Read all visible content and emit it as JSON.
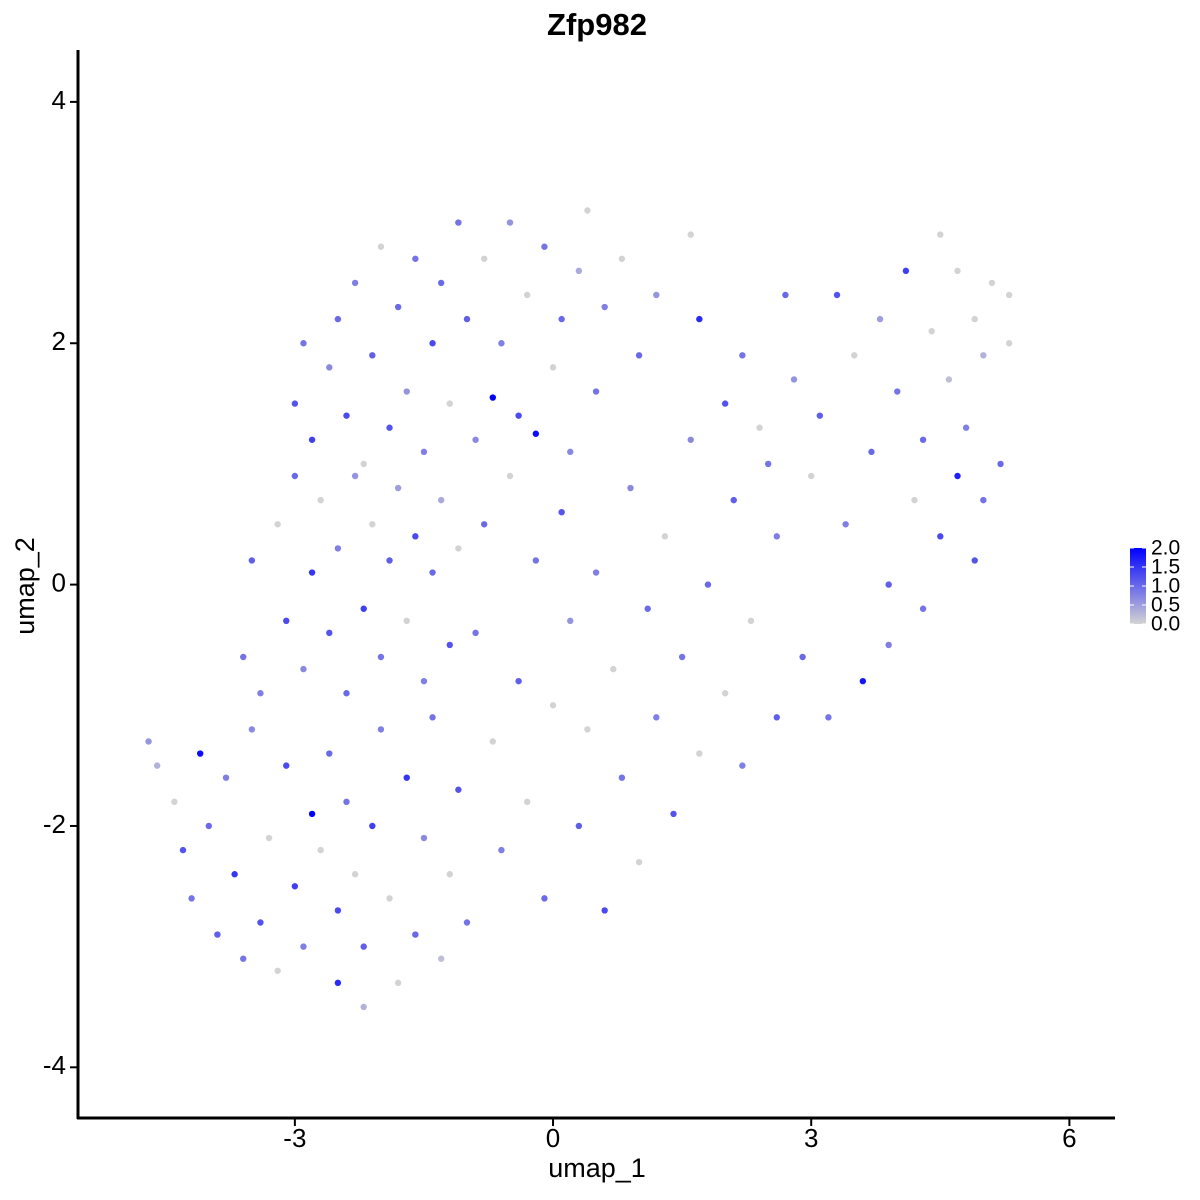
{
  "chart_data": {
    "type": "scatter",
    "title": "Zfp982",
    "x_label": "umap_1",
    "y_label": "umap_2",
    "xlim": [
      -5.52,
      6.53
    ],
    "ylim": [
      -4.42,
      4.43
    ],
    "xticks": [
      -3,
      0,
      3,
      6
    ],
    "yticks": [
      -4,
      -2,
      0,
      2,
      4
    ],
    "color_scale": {
      "low": "#d3d3d3",
      "high": "#0000ff",
      "limits": [
        0,
        2
      ],
      "ticks": [
        {
          "value": 0,
          "label": "0.0"
        },
        {
          "value": 0.5,
          "label": "0.5"
        },
        {
          "value": 1,
          "label": "1.0"
        },
        {
          "value": 1.5,
          "label": "1.5"
        },
        {
          "value": 2,
          "label": "2.0"
        }
      ]
    },
    "x": [
      -4.7,
      -4.6,
      -4.4,
      -4.3,
      -4.2,
      -4.0,
      -3.9,
      -3.8,
      -3.7,
      -3.6,
      -3.5,
      -3.4,
      -3.3,
      -3.2,
      -3.1,
      -3.0,
      -2.9,
      -2.7,
      -2.6,
      -2.5,
      -2.5,
      -2.4,
      -2.3,
      -2.2,
      -2.2,
      -2.1,
      -2.0,
      -1.9,
      -1.8,
      -1.7,
      -1.6,
      -1.5,
      -1.4,
      -1.3,
      -1.2,
      -1.1,
      -1.0,
      -4.1,
      -2.8,
      -3.6,
      -3.5,
      -3.4,
      -3.2,
      -3.1,
      -3.0,
      -2.9,
      -2.8,
      -2.7,
      -2.6,
      -2.5,
      -2.4,
      -2.3,
      -2.2,
      -2.1,
      -2.0,
      -1.9,
      -1.8,
      -1.7,
      -1.6,
      -1.5,
      -1.4,
      -1.3,
      -1.2,
      -1.1,
      -3.0,
      -2.9,
      -2.8,
      -2.6,
      -2.5,
      -2.4,
      -2.3,
      -2.2,
      -2.1,
      -2.0,
      -1.9,
      -1.8,
      -1.7,
      -1.6,
      -1.5,
      -1.4,
      -1.3,
      -1.2,
      -1.1,
      -1.0,
      -0.9,
      -0.8,
      -0.7,
      -0.6,
      -0.5,
      -0.4,
      -0.3,
      -0.2,
      -0.1,
      0.0,
      0.1,
      0.2,
      0.3,
      0.4,
      0.5,
      0.6,
      0.8,
      1.0,
      1.2,
      1.6,
      1.7,
      -0.9,
      -0.8,
      -0.7,
      -0.6,
      -0.5,
      -0.4,
      -0.3,
      -0.2,
      -0.1,
      0.0,
      0.1,
      0.2,
      0.3,
      0.4,
      0.5,
      0.6,
      0.7,
      0.8,
      0.9,
      1.0,
      1.1,
      1.2,
      1.3,
      1.4,
      1.5,
      1.6,
      1.7,
      1.8,
      2.0,
      2.1,
      2.2,
      2.3,
      2.5,
      2.6,
      2.0,
      2.2,
      2.4,
      2.6,
      2.7,
      2.8,
      2.9,
      3.0,
      3.1,
      3.2,
      3.3,
      3.4,
      3.5,
      3.6,
      3.7,
      3.8,
      3.9,
      4.0,
      4.1,
      4.2,
      4.3,
      4.4,
      4.5,
      4.5,
      4.6,
      4.7,
      4.7,
      4.8,
      4.9,
      5.0,
      5.0,
      5.1,
      5.2,
      5.3,
      5.3,
      4.9,
      4.3,
      3.9
    ],
    "values": [
      -1.3,
      -1.5,
      -1.8,
      -2.2,
      -2.6,
      -2.0,
      -2.9,
      -1.6,
      -2.4,
      -3.1,
      -1.2,
      -2.8,
      -2.1,
      -3.2,
      -1.5,
      -2.5,
      -3.0,
      -2.2,
      -1.4,
      -2.7,
      -3.3,
      -1.8,
      -2.4,
      -3.0,
      -3.5,
      -2.0,
      -1.2,
      -2.6,
      -3.3,
      -1.6,
      -2.9,
      -2.1,
      -1.1,
      -3.1,
      -2.4,
      -1.7,
      -2.8,
      -1.4,
      -1.9,
      -0.6,
      0.2,
      -0.9,
      0.5,
      -0.3,
      0.9,
      -0.7,
      0.1,
      0.7,
      -0.4,
      0.3,
      -0.9,
      0.9,
      -0.2,
      0.5,
      -0.6,
      0.2,
      0.8,
      -0.3,
      0.4,
      -0.8,
      0.1,
      0.7,
      -0.5,
      0.3,
      1.5,
      2.0,
      1.2,
      1.8,
      2.2,
      1.4,
      2.5,
      1.0,
      1.9,
      2.8,
      1.3,
      2.3,
      1.6,
      2.7,
      1.1,
      2.0,
      2.5,
      1.5,
      3.0,
      2.2,
      1.2,
      2.7,
      1.55,
      2.0,
      3.0,
      1.4,
      2.4,
      1.25,
      2.8,
      1.8,
      2.2,
      1.1,
      2.6,
      3.1,
      1.6,
      2.3,
      2.7,
      1.9,
      2.4,
      2.9,
      2.2,
      -0.4,
      0.5,
      -1.3,
      -2.2,
      0.9,
      -0.8,
      -1.8,
      0.2,
      -2.6,
      -1.0,
      0.6,
      -0.3,
      -2.0,
      -1.2,
      0.1,
      -2.7,
      -0.7,
      -1.6,
      0.8,
      -2.3,
      -0.2,
      -1.1,
      0.4,
      -1.9,
      -0.6,
      1.2,
      -1.4,
      0.0,
      -0.9,
      0.7,
      -1.5,
      -0.3,
      1.0,
      -1.1,
      1.5,
      1.9,
      1.3,
      0.4,
      2.4,
      1.7,
      -0.6,
      0.9,
      1.4,
      -1.1,
      2.4,
      0.5,
      1.9,
      -0.8,
      1.1,
      2.2,
      0.0,
      1.6,
      2.6,
      0.7,
      1.2,
      2.1,
      0.4,
      2.9,
      1.7,
      0.9,
      2.6,
      1.3,
      2.2,
      0.7,
      1.9,
      2.5,
      1.0,
      2.0,
      2.4,
      0.2,
      -0.2,
      -0.5
    ],
    "expression": [
      0.6,
      0.3,
      0,
      1.2,
      0.9,
      1.0,
      1.1,
      0.8,
      1.5,
      0.9,
      0.7,
      1.2,
      0,
      0,
      1.3,
      1.4,
      0.8,
      0,
      1.0,
      1.3,
      1.6,
      0.9,
      0,
      1.1,
      0.3,
      1.4,
      0.8,
      0,
      0,
      1.5,
      1.0,
      0.7,
      0.9,
      0.2,
      0,
      1.2,
      0.9,
      1.9,
      2.0,
      0.9,
      1.1,
      0.8,
      0,
      1.3,
      1.0,
      0.7,
      1.5,
      0,
      1.2,
      0.8,
      1.0,
      0.6,
      1.4,
      0,
      0.9,
      1.1,
      0.5,
      0,
      1.3,
      0.8,
      1.0,
      0.4,
      1.2,
      0,
      1.2,
      0.9,
      1.4,
      0.7,
      1.0,
      1.3,
      0.8,
      0,
      1.1,
      0,
      1.2,
      1.0,
      0.6,
      0.9,
      0.8,
      1.3,
      1.0,
      0,
      0.9,
      1.1,
      0.7,
      0,
      2.0,
      0.8,
      0.6,
      1.3,
      0,
      1.9,
      0.9,
      0,
      1.0,
      0.7,
      0.4,
      0,
      0.9,
      0.8,
      0,
      1.0,
      0.6,
      0,
      1.6,
      0.9,
      1.0,
      0,
      0.8,
      0,
      1.1,
      0,
      0.9,
      1.0,
      0,
      1.2,
      0.6,
      1.1,
      0,
      0.8,
      1.3,
      0,
      0.9,
      0.7,
      0,
      1.0,
      0.8,
      0,
      1.2,
      0.9,
      0.7,
      0,
      1.0,
      0,
      1.1,
      0.8,
      0,
      0.9,
      1.1,
      1.2,
      0.9,
      0,
      0.8,
      1.0,
      0.6,
      1.0,
      0,
      1.1,
      0.9,
      1.2,
      0.8,
      0,
      1.8,
      1.0,
      0.5,
      1.1,
      0.9,
      1.4,
      0,
      1.0,
      0,
      1.3,
      0,
      0.2,
      1.7,
      0,
      0.8,
      0,
      0.9,
      0.3,
      0,
      1.0,
      0,
      0,
      1.2,
      0.9,
      0.8
    ]
  }
}
